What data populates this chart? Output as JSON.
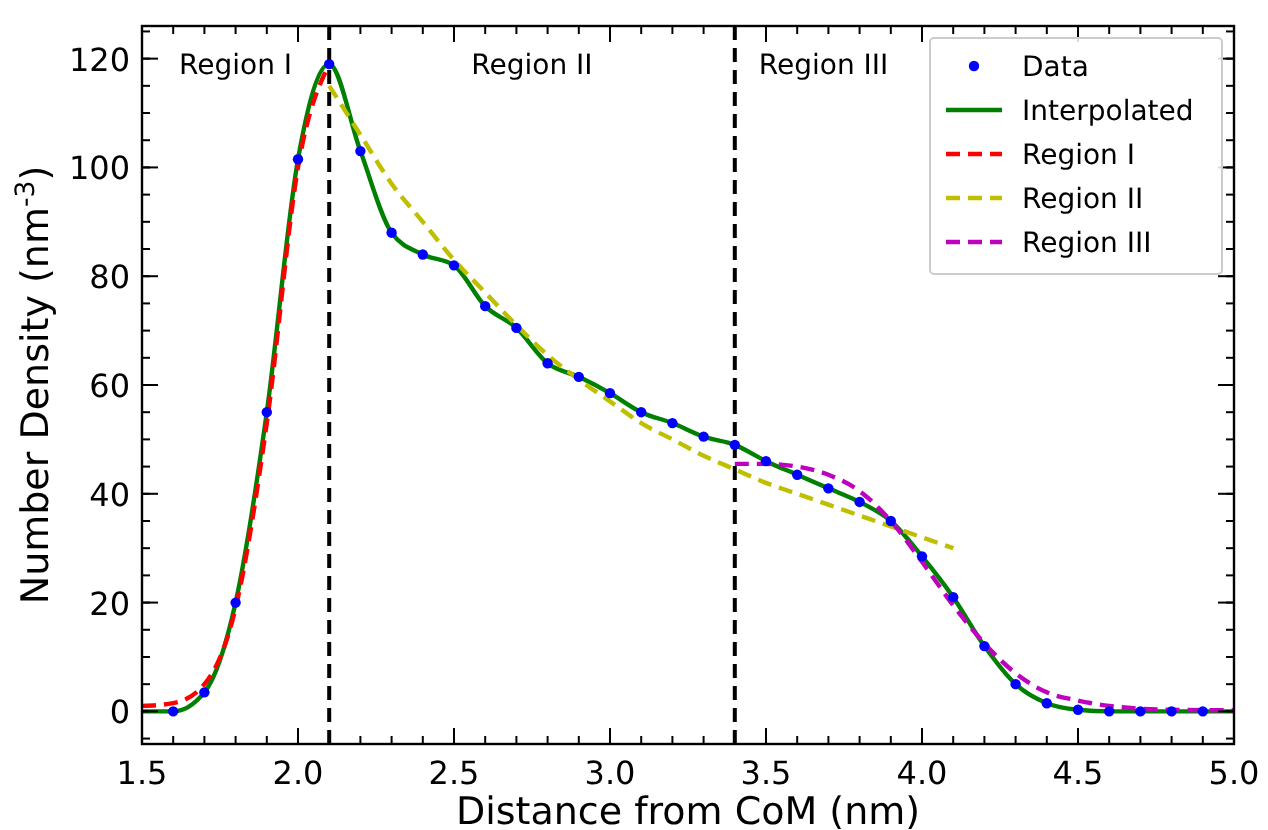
{
  "chart_data": {
    "type": "line",
    "xlabel": "Distance from CoM (nm)",
    "ylabel": "Number Density (nm$^{-3}$)",
    "xlim": [
      1.5,
      5.0
    ],
    "ylim": [
      -6,
      126
    ],
    "xticks": [
      1.5,
      {
        "value": 2,
        "label": "2.0"
      },
      2.5,
      {
        "value": 3,
        "label": "3.0"
      },
      3.5,
      {
        "value": 4,
        "label": "4.0"
      },
      4.5,
      {
        "value": 5,
        "label": "5.0"
      }
    ],
    "yticks": [
      0,
      20,
      40,
      60,
      80,
      100,
      120
    ],
    "grid": false,
    "legend": "top right",
    "series": [
      {
        "name": "Data",
        "type": "scatter",
        "marker": "circle",
        "color": "#0000ff",
        "x": [
          1.6,
          1.7,
          1.8,
          1.9,
          2.0,
          2.1,
          2.2,
          2.3,
          2.4,
          2.5,
          2.6,
          2.7,
          2.8,
          2.9,
          3.0,
          3.1,
          3.2,
          3.3,
          3.4,
          3.5,
          3.6,
          3.7,
          3.8,
          3.9,
          4.0,
          4.1,
          4.2,
          4.3,
          4.4,
          4.5,
          4.6,
          4.7,
          4.8,
          4.9
        ],
        "values": [
          0,
          3.5,
          20,
          55,
          101.5,
          119,
          103,
          88,
          84,
          82,
          74.5,
          70.5,
          64,
          61.5,
          58.5,
          55,
          53,
          50.5,
          49,
          46,
          43.5,
          41,
          38.5,
          35,
          28.5,
          21,
          12,
          5,
          1.5,
          0.3,
          0,
          0,
          0,
          0
        ]
      },
      {
        "name": "Interpolated",
        "line_style": "solid",
        "color": "#008000",
        "x": [
          1.5,
          1.6,
          1.7,
          1.8,
          1.9,
          2.0,
          2.1,
          2.2,
          2.3,
          2.4,
          2.5,
          2.6,
          2.7,
          2.8,
          2.9,
          3.0,
          3.1,
          3.2,
          3.3,
          3.4,
          3.5,
          3.6,
          3.7,
          3.8,
          3.9,
          4.0,
          4.1,
          4.2,
          4.3,
          4.4,
          4.5,
          4.6,
          4.7,
          4.8,
          4.9,
          5.0
        ],
        "values": [
          0,
          0,
          3.5,
          20,
          55,
          101.5,
          119,
          103,
          88,
          84,
          82,
          74.5,
          70.5,
          64,
          61.5,
          58.5,
          55,
          53,
          50.5,
          49,
          46,
          43.5,
          41,
          38.5,
          35,
          28.5,
          21,
          12,
          5,
          1.5,
          0.3,
          0,
          0,
          0,
          0,
          0
        ]
      },
      {
        "name": "Region I",
        "line_style": "dashed",
        "color": "#ff0000",
        "x": [
          1.5,
          1.6,
          1.7,
          1.8,
          1.9,
          2.0,
          2.1
        ],
        "values": [
          1,
          1.5,
          5,
          19,
          53,
          100,
          119
        ]
      },
      {
        "name": "Region II",
        "line_style": "dashed",
        "color": "#bfbf00",
        "x": [
          2.1,
          2.2,
          2.3,
          2.4,
          2.5,
          2.6,
          2.7,
          2.8,
          2.9,
          3.0,
          3.1,
          3.2,
          3.3,
          3.4,
          3.5,
          3.6,
          3.7,
          3.8,
          3.9,
          4.0,
          4.1
        ],
        "values": [
          115,
          106,
          97,
          90,
          83,
          77,
          71,
          65.5,
          61,
          57,
          53,
          50,
          47,
          44.5,
          42,
          40,
          38,
          36,
          34,
          32,
          30
        ]
      },
      {
        "name": "Region III",
        "line_style": "dashed",
        "color": "#bf00bf",
        "x": [
          3.4,
          3.5,
          3.6,
          3.7,
          3.8,
          3.9,
          4.0,
          4.1,
          4.2,
          4.3,
          4.4,
          4.5,
          4.6,
          4.7,
          4.8,
          5.0
        ],
        "values": [
          45.5,
          45.5,
          45,
          43.5,
          40.5,
          35,
          27.5,
          19.5,
          12.5,
          7,
          3.5,
          2,
          1,
          0.5,
          0.3,
          0.2
        ]
      }
    ],
    "ref_lines": [
      {
        "axis": "x",
        "value": 2.1,
        "color": "#000000",
        "line_style": "dashed"
      },
      {
        "axis": "x",
        "value": 3.4,
        "color": "#000000",
        "line_style": "dashed"
      }
    ],
    "annotations": [
      "Region I",
      "Region II",
      "Region III"
    ]
  }
}
